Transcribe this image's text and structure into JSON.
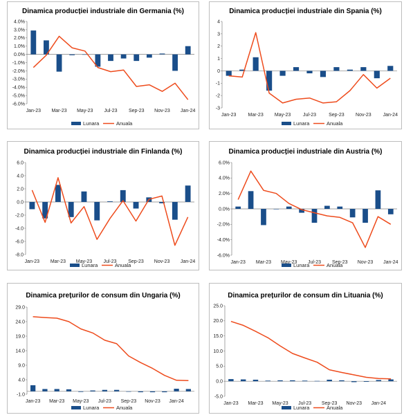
{
  "colors": {
    "bar": "#1a4e8a",
    "line": "#ee4b1c",
    "axis": "#7f7f7f"
  },
  "chart_data": [
    {
      "type": "bar",
      "title": "Dinamica producției industriale din Germania (%)",
      "xticks": [
        "Jan-23",
        "Mar-23",
        "May-23",
        "Jul-23",
        "Sep-23",
        "Nov-23",
        "Jan-24"
      ],
      "yticks": [
        "4.0%",
        "3.0%",
        "2.0%",
        "1.0%",
        "0.0%",
        "-1.0%",
        "-2.0%",
        "-3.0%",
        "-4.0%",
        "-5.0%",
        "-6.0%"
      ],
      "ylim": [
        -6,
        4
      ],
      "categories": [
        "Jan-23",
        "Feb-23",
        "Mar-23",
        "Apr-23",
        "May-23",
        "Jun-23",
        "Jul-23",
        "Aug-23",
        "Sep-23",
        "Oct-23",
        "Nov-23",
        "Dec-23",
        "Jan-24"
      ],
      "series": [
        {
          "name": "Lunara",
          "kind": "bar",
          "values": [
            2.9,
            1.7,
            -2.1,
            -0.1,
            0.0,
            -1.5,
            -0.8,
            -0.5,
            -0.8,
            -0.4,
            0.1,
            -2.0,
            1.0
          ]
        },
        {
          "name": "Anuala",
          "kind": "line",
          "values": [
            -1.6,
            -0.1,
            2.2,
            0.8,
            0.4,
            -1.6,
            -2.1,
            -1.9,
            -3.9,
            -3.7,
            -4.5,
            -3.5,
            -5.5
          ]
        }
      ]
    },
    {
      "type": "bar",
      "title": "Dinamica producției industriale din Spania (%)",
      "xticks": [
        "Jan-23",
        "Mar-23",
        "May-23",
        "Jul-23",
        "Sep-23",
        "Nov-23",
        "Jan-24"
      ],
      "yticks": [
        "4",
        "3",
        "2",
        "1",
        "0",
        "-1",
        "-2",
        "-3"
      ],
      "ylim": [
        -3,
        4
      ],
      "categories": [
        "Jan-23",
        "Feb-23",
        "Mar-23",
        "Apr-23",
        "May-23",
        "Jun-23",
        "Jul-23",
        "Aug-23",
        "Sep-23",
        "Oct-23",
        "Nov-23",
        "Dec-23",
        "Jan-24"
      ],
      "series": [
        {
          "name": "Lunara",
          "kind": "bar",
          "values": [
            -0.4,
            0.1,
            1.1,
            -1.6,
            -0.4,
            0.3,
            -0.2,
            -0.5,
            0.3,
            0.1,
            0.3,
            -0.6,
            0.4
          ]
        },
        {
          "name": "Anuala",
          "kind": "line",
          "values": [
            -0.4,
            -0.5,
            3.1,
            -1.8,
            -2.6,
            -2.3,
            -2.2,
            -2.6,
            -2.5,
            -1.6,
            -0.3,
            -1.4,
            -0.6
          ]
        }
      ]
    },
    {
      "type": "bar",
      "title": "Dinamica producției industriale din Finlanda (%)",
      "xticks": [
        "Jan-23",
        "Mar-23",
        "May-23",
        "Jul-23",
        "Sep-23",
        "Nov-23",
        "Jan-24"
      ],
      "yticks": [
        "6.0",
        "4.0",
        "2.0",
        "0.0",
        "-2.0",
        "-4.0",
        "-6.0",
        "-8.0"
      ],
      "ylim": [
        -8,
        6
      ],
      "categories": [
        "Jan-23",
        "Feb-23",
        "Mar-23",
        "Apr-23",
        "May-23",
        "Jun-23",
        "Jul-23",
        "Aug-23",
        "Sep-23",
        "Oct-23",
        "Nov-23",
        "Dec-23",
        "Jan-24"
      ],
      "series": [
        {
          "name": "Lunara",
          "kind": "bar",
          "values": [
            -1.1,
            -2.5,
            2.6,
            -2.3,
            1.6,
            -2.8,
            0.1,
            1.8,
            -1.0,
            0.7,
            -0.2,
            -2.7,
            2.5
          ]
        },
        {
          "name": "Anuala",
          "kind": "line",
          "values": [
            1.8,
            -3.1,
            3.7,
            -3.2,
            -0.7,
            -5.7,
            -2.5,
            0.2,
            -2.9,
            0.4,
            0.9,
            -6.6,
            -2.3
          ]
        }
      ]
    },
    {
      "type": "bar",
      "title": "Dinamica producției industriale din Austria (%)",
      "xticks": [
        "Jan-23",
        "Mar-23",
        "May-23",
        "Jul-23",
        "Sep-23",
        "Nov-23",
        "Jan-24"
      ],
      "yticks": [
        "6.0%",
        "4.0%",
        "2.0%",
        "0.0%",
        "-2.0%",
        "-4.0%",
        "-6.0%"
      ],
      "ylim": [
        -6,
        6
      ],
      "categories": [
        "Jan-23",
        "Feb-23",
        "Mar-23",
        "Apr-23",
        "May-23",
        "Jun-23",
        "Jul-23",
        "Aug-23",
        "Sep-23",
        "Oct-23",
        "Nov-23",
        "Dec-23",
        "Jan-24"
      ],
      "series": [
        {
          "name": "Lunara",
          "kind": "bar",
          "values": [
            0.3,
            2.3,
            -2.1,
            0.0,
            0.3,
            -0.5,
            -1.8,
            0.4,
            0.3,
            -1.1,
            -1.8,
            2.4,
            -0.7
          ]
        },
        {
          "name": "Anuala",
          "kind": "line",
          "values": [
            1.2,
            4.9,
            2.4,
            2.0,
            0.7,
            -0.1,
            -0.5,
            -0.9,
            -1.1,
            -1.8,
            -5.0,
            -1.0,
            -2.0
          ]
        }
      ]
    },
    {
      "type": "bar",
      "title": "Dinamica prețurilor de consum din Ungaria (%)",
      "xticks": [
        "Jan-23",
        "Mar-23",
        "May-23",
        "Jul-23",
        "Sep-23",
        "Nov-23",
        "Jan-24"
      ],
      "yticks": [
        "29.0",
        "24.0",
        "19.0",
        "14.0",
        "9.0",
        "4.0",
        "-1.0"
      ],
      "ylim": [
        -1,
        29
      ],
      "categories": [
        "Jan-23",
        "Feb-23",
        "Mar-23",
        "Apr-23",
        "May-23",
        "Jun-23",
        "Jul-23",
        "Aug-23",
        "Sep-23",
        "Oct-23",
        "Nov-23",
        "Dec-23",
        "Jan-24",
        "Feb-24"
      ],
      "series": [
        {
          "name": "Lunara",
          "kind": "bar",
          "values": [
            2.1,
            0.8,
            0.8,
            0.7,
            -0.2,
            0.3,
            0.5,
            0.5,
            0.0,
            -0.3,
            -0.3,
            -0.3,
            0.9,
            0.8
          ]
        },
        {
          "name": "Anuala",
          "kind": "line",
          "values": [
            25.7,
            25.4,
            25.2,
            24.0,
            21.5,
            20.1,
            17.6,
            16.4,
            12.2,
            9.9,
            7.9,
            5.5,
            3.8,
            3.7
          ]
        }
      ]
    },
    {
      "type": "bar",
      "title": "Dinamica prețurilor de consum din Lituania (%)",
      "xticks": [
        "Jan-23",
        "Mar-23",
        "May-23",
        "Jul-23",
        "Sep-23",
        "Nov-23",
        "Jan-24"
      ],
      "yticks": [
        "25.0",
        "20.0",
        "15.0",
        "10.0",
        "5.0",
        "0.0",
        "-5.0"
      ],
      "ylim": [
        -5,
        25
      ],
      "categories": [
        "Jan-23",
        "Feb-23",
        "Mar-23",
        "Apr-23",
        "May-23",
        "Jun-23",
        "Jul-23",
        "Aug-23",
        "Sep-23",
        "Oct-23",
        "Nov-23",
        "Dec-23",
        "Jan-24",
        "Feb-24"
      ],
      "series": [
        {
          "name": "Lunara",
          "kind": "bar",
          "values": [
            0.7,
            0.6,
            0.5,
            0.2,
            0.3,
            0.3,
            0.2,
            0.1,
            0.5,
            0.3,
            -0.3,
            -0.2,
            0.4,
            0.6
          ]
        },
        {
          "name": "Anuala",
          "kind": "line",
          "values": [
            19.8,
            18.5,
            16.5,
            14.4,
            11.7,
            9.2,
            7.7,
            6.3,
            3.8,
            2.9,
            2.1,
            1.3,
            0.9,
            0.8
          ]
        }
      ]
    }
  ]
}
